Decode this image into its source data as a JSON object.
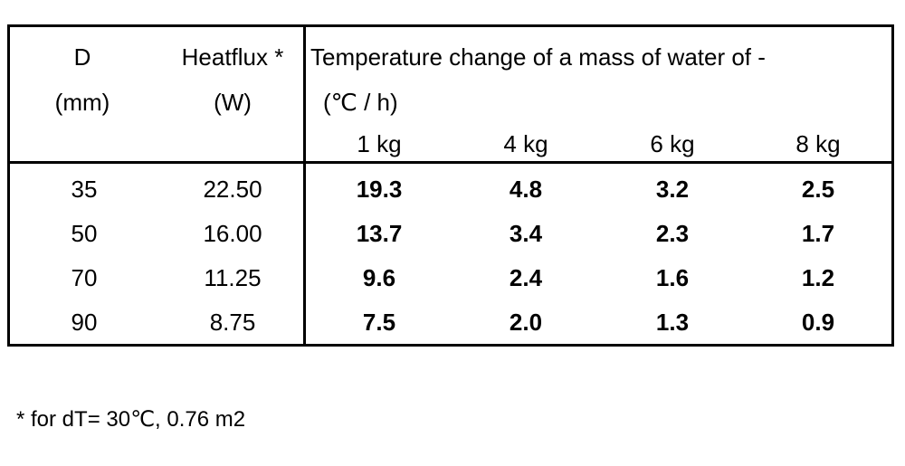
{
  "table": {
    "header": {
      "d_label": "D",
      "d_unit": "(mm)",
      "heatflux_label": "Heatflux *",
      "heatflux_unit": "(W)",
      "temp_label": "Temperature change of a mass of water of -",
      "temp_unit": "(℃ / h)",
      "masses": [
        "1 kg",
        "4 kg",
        "6 kg",
        "8 kg"
      ]
    },
    "rows": [
      {
        "d": "35",
        "heatflux": "22.50",
        "values": [
          "19.3",
          "4.8",
          "3.2",
          "2.5"
        ]
      },
      {
        "d": "50",
        "heatflux": "16.00",
        "values": [
          "13.7",
          "3.4",
          "2.3",
          "1.7"
        ]
      },
      {
        "d": "70",
        "heatflux": "11.25",
        "values": [
          "9.6",
          "2.4",
          "1.6",
          "1.2"
        ]
      },
      {
        "d": "90",
        "heatflux": "8.75",
        "values": [
          "7.5",
          "2.0",
          "1.3",
          "0.9"
        ]
      }
    ]
  },
  "footnote": "* for dT= 30℃, 0.76 m2"
}
